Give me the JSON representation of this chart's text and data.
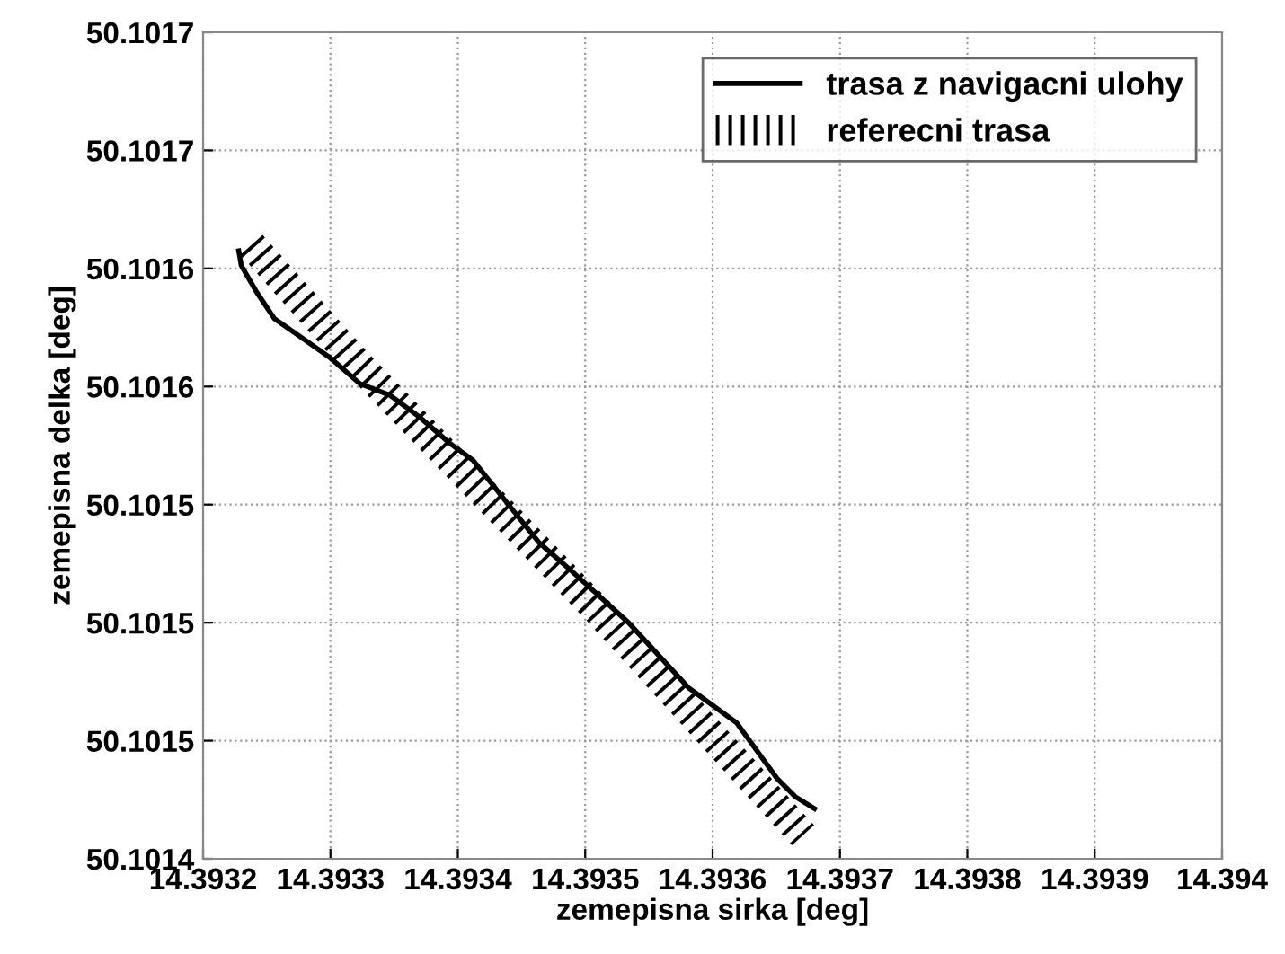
{
  "chart_data": {
    "type": "line",
    "xlabel": "zemepisna sirka [deg]",
    "ylabel": "zemepisna delka [deg]",
    "series": [
      {
        "name": "trasa z navigacni ulohy",
        "color": "#000000",
        "line_style": "solid",
        "x": [
          14.393228,
          14.39323,
          14.393242,
          14.393256,
          14.393276,
          14.393299,
          14.393323,
          14.393347,
          14.393369,
          14.393393,
          14.393412,
          14.393436,
          14.393464,
          14.393488,
          14.393534,
          14.393581,
          14.393619,
          14.393651,
          14.393665,
          14.39368
        ],
        "values": [
          50.101626,
          50.101621,
          50.101612,
          50.101603,
          50.101597,
          50.10159,
          50.101581,
          50.101577,
          50.10157,
          50.101561,
          50.101555,
          50.101542,
          50.101527,
          50.101518,
          50.1015,
          50.101478,
          50.101466,
          50.101447,
          50.101441,
          50.101437
        ]
      },
      {
        "name": "referecni trasa",
        "color": "#000000",
        "line_style": "dotted",
        "x": [
          14.393238,
          14.393323,
          14.39351,
          14.393671
        ],
        "values": [
          50.101628,
          50.101587,
          50.101504,
          50.101428
        ]
      }
    ],
    "xlim": [
      14.3932,
      14.394
    ],
    "ylim": [
      50.10142,
      50.1017
    ],
    "xticks": [
      14.3932,
      14.3933,
      14.3934,
      14.3935,
      14.3936,
      14.3937,
      14.3938,
      14.3939,
      14.394
    ],
    "yticks": [
      {
        "value": 50.10142,
        "label": "50.1014"
      },
      {
        "value": 50.10146,
        "label": "50.1015"
      },
      {
        "value": 50.1015,
        "label": "50.1015"
      },
      {
        "value": 50.10154,
        "label": "50.1015"
      },
      {
        "value": 50.10158,
        "label": "50.1016"
      },
      {
        "value": 50.10162,
        "label": "50.1016"
      },
      {
        "value": 50.10166,
        "label": "50.1017"
      },
      {
        "value": 50.1017,
        "label": "50.1017"
      }
    ],
    "grid": true,
    "legend": "top right"
  }
}
